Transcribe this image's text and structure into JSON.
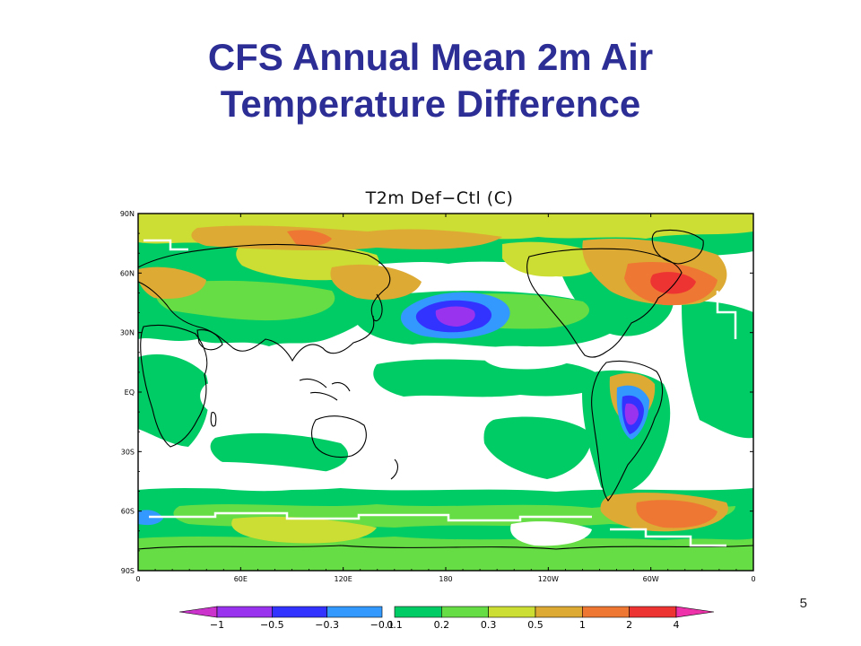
{
  "slide": {
    "title_line1": "CFS Annual Mean 2m Air",
    "title_line2": "Temperature Difference",
    "page_number": "5"
  },
  "map": {
    "title": "T2m Def−Ctl (C)",
    "lat_labels": [
      "90N",
      "60N",
      "30N",
      "EQ",
      "30S",
      "60S",
      "90S"
    ],
    "lon_labels": [
      "0",
      "60E",
      "120E",
      "180",
      "120W",
      "60W",
      "0"
    ]
  },
  "legend": {
    "labels": [
      "−1",
      "−0.5",
      "−0.3",
      "−0.1",
      "0.1",
      "0.2",
      "0.3",
      "0.5",
      "1",
      "2",
      "4"
    ],
    "colors": {
      "below_min": "#cc33cc",
      "bin_1": "#9933ee",
      "bin_2": "#3333ff",
      "bin_3": "#3399ff",
      "bin_4": "#00cc66",
      "bin_5": "#66dd44",
      "bin_6": "#ccdd33",
      "bin_7": "#ddaa33",
      "bin_8": "#ee7733",
      "bin_9": "#ee3333",
      "above_max": "#ee33aa"
    }
  }
}
